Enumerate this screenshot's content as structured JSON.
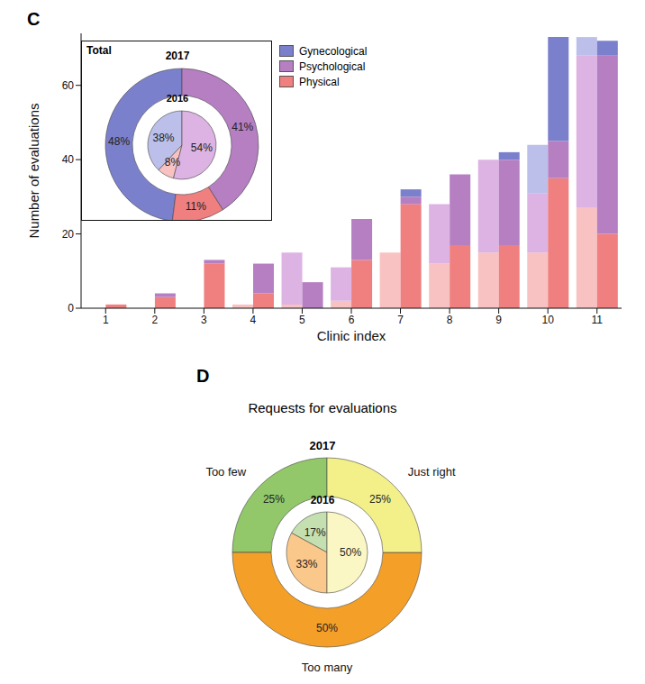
{
  "chart_data": [
    {
      "type": "bar",
      "panel": "C",
      "x_label": "Clinic index",
      "y_label": "Number of evaluations",
      "categories": [
        "1",
        "2",
        "3",
        "4",
        "5",
        "6",
        "7",
        "8",
        "9",
        "10",
        "11"
      ],
      "ylim": [
        0,
        74
      ],
      "yticks": [
        0,
        20,
        40,
        60
      ],
      "stacked": true,
      "legend": "top",
      "groups": [
        {
          "name": "2016",
          "series": [
            {
              "name": "Gynecological",
              "color": "#bcbfe9",
              "values": [
                0,
                0,
                0,
                0,
                0,
                0,
                0,
                0,
                0,
                13,
                5
              ]
            },
            {
              "name": "Psychological",
              "color": "#dcb3e3",
              "values": [
                0,
                0,
                0,
                0,
                14,
                9,
                0,
                16,
                25,
                16,
                41
              ]
            },
            {
              "name": "Physical",
              "color": "#f9c2c2",
              "values": [
                0,
                0,
                0,
                1,
                1,
                2,
                15,
                12,
                15,
                15,
                27
              ]
            }
          ]
        },
        {
          "name": "2017",
          "series": [
            {
              "name": "Gynecological",
              "color": "#7b80cc",
              "values": [
                0,
                0,
                0,
                0,
                0,
                0,
                2,
                0,
                2,
                28,
                4
              ]
            },
            {
              "name": "Psychological",
              "color": "#b57fc2",
              "values": [
                0,
                1,
                1,
                8,
                7,
                11,
                2,
                19,
                23,
                10,
                48
              ]
            },
            {
              "name": "Physical",
              "color": "#f07f7f",
              "values": [
                1,
                3,
                12,
                4,
                0,
                13,
                28,
                17,
                17,
                35,
                20
              ]
            }
          ]
        }
      ]
    },
    {
      "type": "pie",
      "title": "Total",
      "series": [
        {
          "name": "2017",
          "categories": [
            "Gynecological",
            "Physical",
            "Psychological"
          ],
          "values": [
            48,
            11,
            41
          ],
          "value_labels": [
            "48%",
            "11%",
            "41%"
          ],
          "colors": [
            "#7b80cc",
            "#f07f7f",
            "#b57fc2"
          ]
        },
        {
          "name": "2016",
          "categories": [
            "Gynecological",
            "Physical",
            "Psychological"
          ],
          "values": [
            38,
            8,
            54
          ],
          "value_labels": [
            "38%",
            "8%",
            "54%"
          ],
          "colors": [
            "#bcbfe9",
            "#f9c2c2",
            "#dcb3e3"
          ]
        }
      ]
    },
    {
      "type": "pie",
      "panel": "D",
      "title": "Requests for evaluations",
      "series": [
        {
          "name": "2017",
          "categories": [
            "Too few",
            "Too many",
            "Just right"
          ],
          "values": [
            25,
            50,
            25
          ],
          "value_labels": [
            "25%",
            "50%",
            "25%"
          ],
          "colors": [
            "#92c86a",
            "#f4a028",
            "#f3f08a"
          ]
        },
        {
          "name": "2016",
          "categories": [
            "Too few",
            "Too many",
            "Just right"
          ],
          "values": [
            17,
            33,
            50
          ],
          "value_labels": [
            "17%",
            "33%",
            "50%"
          ],
          "colors": [
            "#c5e0b0",
            "#f9c88a",
            "#fbf7c4"
          ]
        }
      ]
    }
  ]
}
